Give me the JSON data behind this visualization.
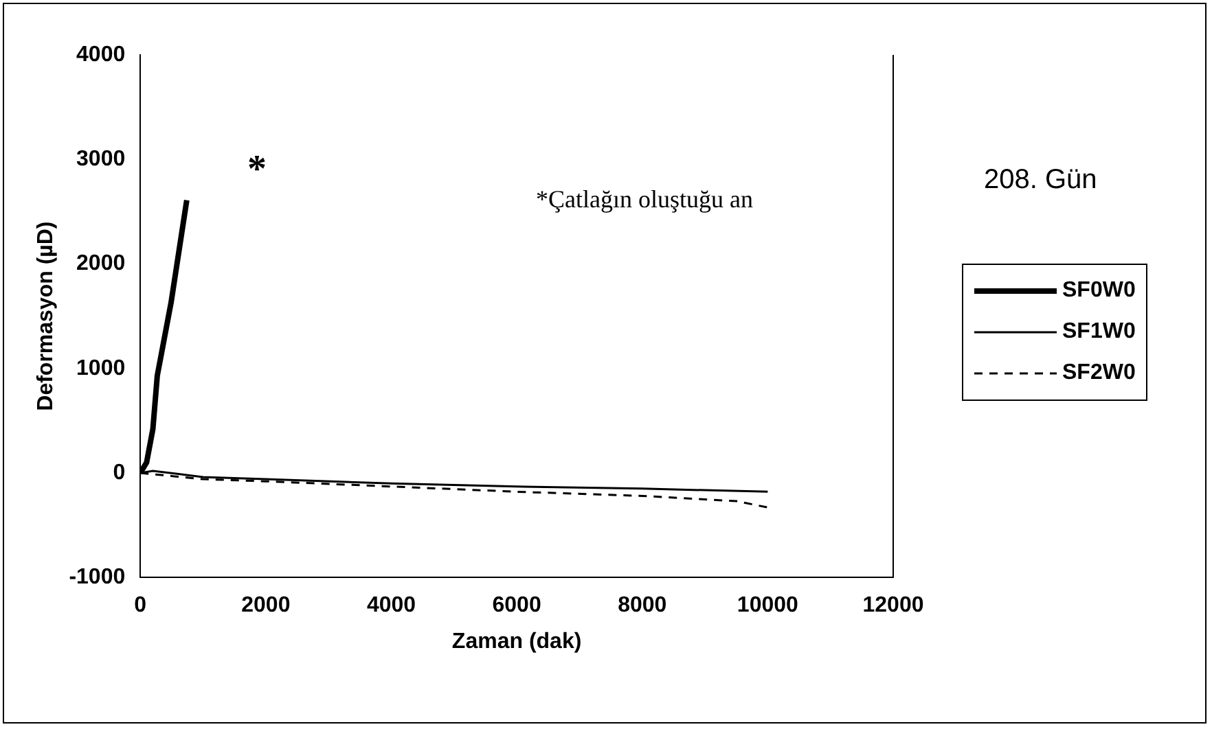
{
  "chart_data": {
    "type": "line",
    "xlabel": "Zaman (dak)",
    "ylabel": "Deformasyon (µD)",
    "xlim": [
      0,
      12000
    ],
    "xticks": [
      0,
      2000,
      4000,
      6000,
      8000,
      10000,
      12000
    ],
    "ylim": [
      -1000,
      4000
    ],
    "yticks": [
      -1000,
      0,
      1000,
      2000,
      3000,
      4000
    ],
    "grid": false,
    "legend": "right",
    "marker": "none",
    "series": [
      {
        "name": "SF0W0",
        "color": "#000000",
        "line_style": "solid",
        "x": [
          0,
          100,
          200,
          270,
          490,
          740
        ],
        "values": [
          0,
          100,
          420,
          930,
          1630,
          2610
        ]
      },
      {
        "name": "SF1W0",
        "color": "#000000",
        "line_style": "solid",
        "x": [
          0,
          200,
          1000,
          2000,
          4000,
          6000,
          8000,
          10000
        ],
        "values": [
          0,
          20,
          -40,
          -60,
          -100,
          -130,
          -150,
          -180
        ]
      },
      {
        "name": "SF2W0",
        "color": "#000000",
        "line_style": "dashed",
        "x": [
          0,
          1000,
          2000,
          4000,
          6000,
          8000,
          9500,
          10000
        ],
        "values": [
          0,
          -60,
          -80,
          -130,
          -180,
          -220,
          -270,
          -330
        ]
      }
    ],
    "annotations": [
      "*",
      "*Çatlağın oluştuğu an",
      "208. Gün"
    ]
  }
}
